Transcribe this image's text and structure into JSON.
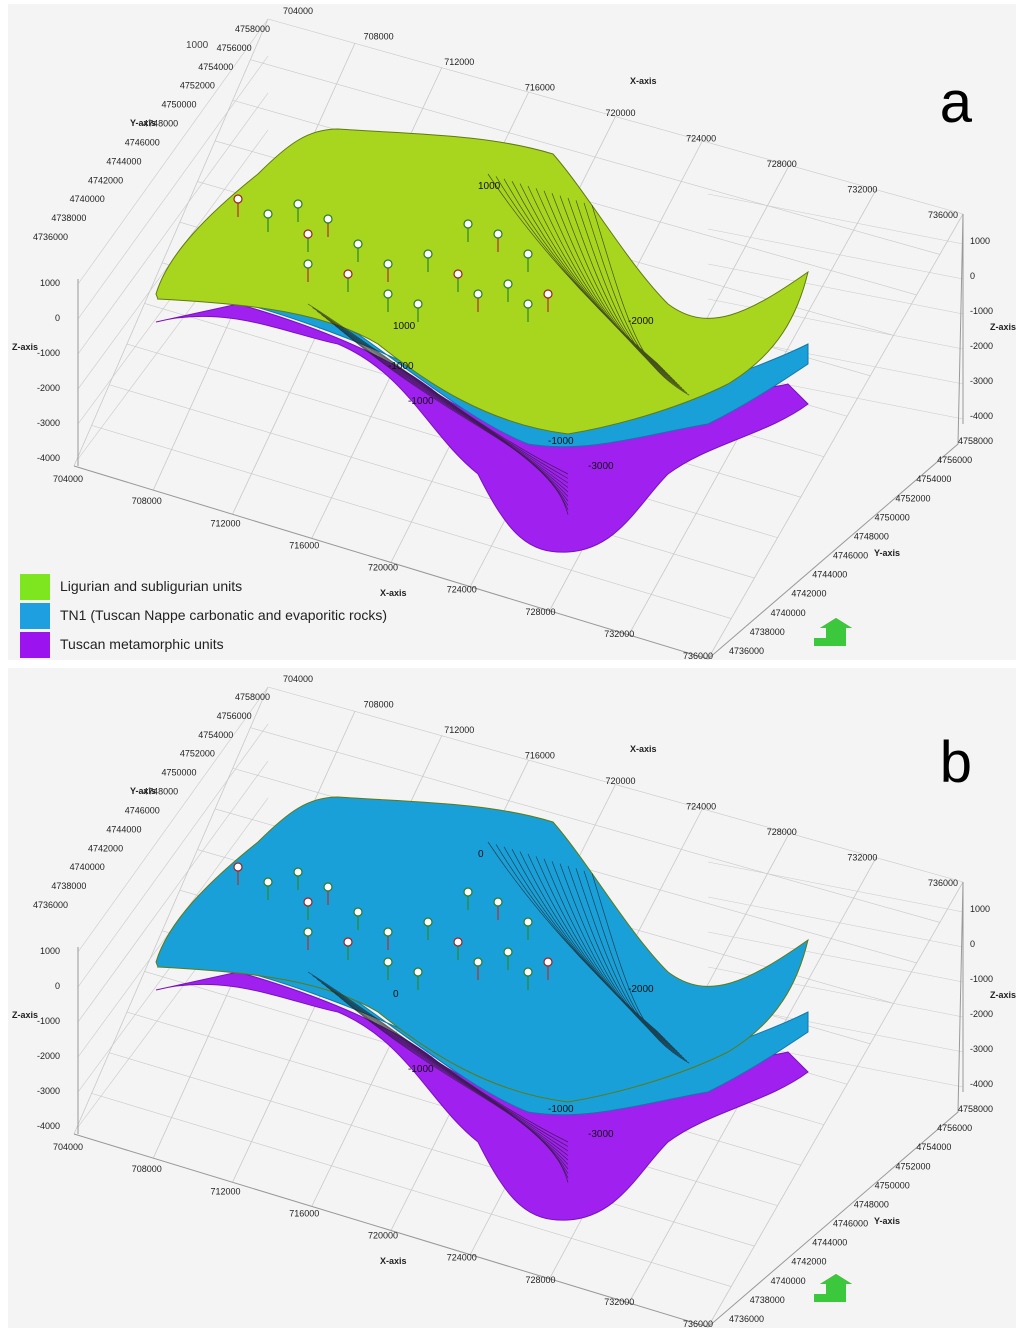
{
  "panels": [
    {
      "id": "a",
      "letter": "a",
      "top_surface_color": "#a8d61e",
      "axes": {
        "x_label": "X-axis",
        "y_label": "Y-axis",
        "z_label": "Z-axis",
        "x_ticks": [
          "704000",
          "708000",
          "712000",
          "716000",
          "720000",
          "724000",
          "728000",
          "732000",
          "736000"
        ],
        "y_ticks": [
          "4736000",
          "4738000",
          "4740000",
          "4742000",
          "4744000",
          "4746000",
          "4748000",
          "4750000",
          "4752000",
          "4754000",
          "4756000",
          "4758000"
        ],
        "z_ticks": [
          "1000",
          "0",
          "-1000",
          "-2000",
          "-3000",
          "-4000"
        ],
        "corner_label": "1000"
      },
      "contour_labels": [
        "1000",
        "1000",
        "-1000",
        "-2000",
        "-1000",
        "-3000",
        "-1000"
      ]
    },
    {
      "id": "b",
      "letter": "b",
      "top_surface_color": "#1aa0d8",
      "axes": {
        "x_label": "X-axis",
        "y_label": "Y-axis",
        "z_label": "Z-axis",
        "x_ticks": [
          "704000",
          "708000",
          "712000",
          "716000",
          "720000",
          "724000",
          "728000",
          "732000",
          "736000"
        ],
        "y_ticks": [
          "4736000",
          "4738000",
          "4740000",
          "4742000",
          "4744000",
          "4746000",
          "4748000",
          "4750000",
          "4752000",
          "4754000",
          "4756000",
          "4758000"
        ],
        "z_ticks": [
          "1000",
          "0",
          "-1000",
          "-2000",
          "-3000",
          "-4000"
        ]
      },
      "contour_labels": [
        "0",
        "0",
        "-1000",
        "-2000",
        "-1000",
        "-3000"
      ]
    }
  ],
  "legend": [
    {
      "label": "Ligurian and subligurian units",
      "color": "#7ee61e"
    },
    {
      "label": "TN1 (Tuscan Nappe carbonatic and evaporitic rocks)",
      "color": "#1ea0e0"
    },
    {
      "label": "Tuscan metamorphic units",
      "color": "#9b14f0"
    }
  ],
  "colors": {
    "ligurian_surface": "#a8d61e",
    "tn1_surface": "#1aa0d8",
    "metamorphic_surface": "#a020f0",
    "grid": "#c8c8c8",
    "nav_arrow_top": "#3cc83c",
    "nav_arrow_bottom": "#d82020"
  }
}
